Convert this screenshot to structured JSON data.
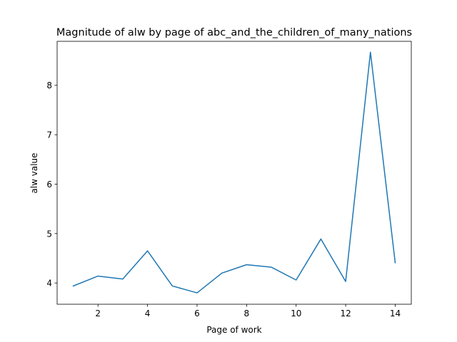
{
  "chart_data": {
    "type": "line",
    "title": "Magnitude of alw by page of abc_and_the_children_of_many_nations",
    "xlabel": "Page of work",
    "ylabel": "alw value",
    "xlim": [
      0.35,
      14.65
    ],
    "ylim": [
      3.57,
      8.89
    ],
    "xticks": [
      2,
      4,
      6,
      8,
      10,
      12,
      14
    ],
    "yticks": [
      4,
      5,
      6,
      7,
      8
    ],
    "series": [
      {
        "name": "alw",
        "color": "#1f77b4",
        "x": [
          1,
          2,
          3,
          4,
          5,
          6,
          7,
          8,
          9,
          10,
          11,
          12,
          13,
          14
        ],
        "values": [
          3.94,
          4.14,
          4.08,
          4.65,
          3.94,
          3.8,
          4.2,
          4.37,
          4.32,
          4.06,
          4.89,
          4.03,
          8.67,
          4.41
        ]
      }
    ],
    "grid": false
  }
}
